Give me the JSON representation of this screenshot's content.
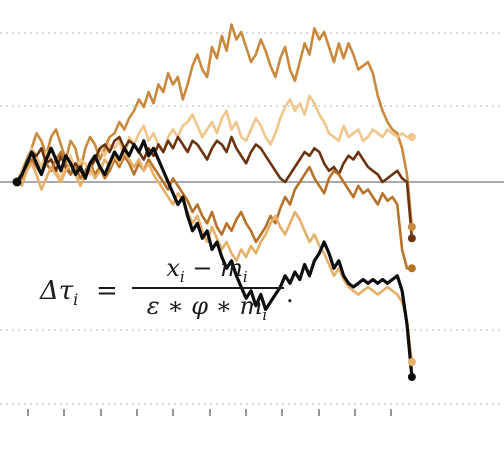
{
  "chart_data": {
    "type": "line",
    "title": "",
    "xlabel": "",
    "ylabel": "",
    "xlim": [
      0,
      80
    ],
    "ylim": [
      -5,
      4.5
    ],
    "grid": "horizontal-dotted",
    "zero_line": true,
    "formula": {
      "lhs": "Δτ",
      "lhs_sub": "i",
      "eq": "=",
      "numerator": "x",
      "numerator_sub1": "i",
      "numerator_mid": " − m",
      "numerator_sub2": "i",
      "denominator": "ε ∗ φ ∗ m",
      "denominator_sub": "i",
      "end": "."
    },
    "colors": {
      "brown_dark": "#6b3410",
      "brown_mid": "#b8732a",
      "orange": "#c98a3e",
      "tan": "#e6b06a",
      "peach": "#f0c68a",
      "black": "#0d0d0d"
    },
    "series": [
      {
        "color": "#c98a3e",
        "values": [
          0,
          0.3,
          0.6,
          0.9,
          1.3,
          1.1,
          0.7,
          1.2,
          1.4,
          1.0,
          0.6,
          1.1,
          0.9,
          0.3,
          0.9,
          1.2,
          1.0,
          0.6,
          0.9,
          1.2,
          1.3,
          1.6,
          1.4,
          1.7,
          1.9,
          2.2,
          2.0,
          2.4,
          2.1,
          2.6,
          2.4,
          2.9,
          2.6,
          2.8,
          2.2,
          2.6,
          3.1,
          3.4,
          3.0,
          2.8,
          3.6,
          3.3,
          3.9,
          3.5,
          4.2,
          3.8,
          4.0,
          3.6,
          3.2,
          3.4,
          3.8,
          3.5,
          3.1,
          2.8,
          3.3,
          3.6,
          3.0,
          2.7,
          3.2,
          3.7,
          3.4,
          4.1,
          3.8,
          4.0,
          3.6,
          3.2,
          3.7,
          3.3,
          3.7,
          3.4,
          3.0,
          3.1,
          3.2,
          2.9,
          2.3,
          1.9,
          1.6,
          1.4,
          1.3,
          0.9,
          0.2,
          -1.2
        ]
      },
      {
        "color": "#f0c68a",
        "values": [
          0,
          0.3,
          0.5,
          0.9,
          0.7,
          0.4,
          0.8,
          0.6,
          0.3,
          0.1,
          0.5,
          0.7,
          0.3,
          0.6,
          0.5,
          0.2,
          0.6,
          0.9,
          0.7,
          1.0,
          0.9,
          1.1,
          0.6,
          1.2,
          1.0,
          1.3,
          1.5,
          1.1,
          1.3,
          1.0,
          0.8,
          1.2,
          1.4,
          1.2,
          1.5,
          1.6,
          1.8,
          1.5,
          1.2,
          1.4,
          1.6,
          1.3,
          1.7,
          1.9,
          1.4,
          1.6,
          1.2,
          1.1,
          1.4,
          1.7,
          1.5,
          1.2,
          1.0,
          1.3,
          1.7,
          2.0,
          2.2,
          1.9,
          2.1,
          1.8,
          2.3,
          2.1,
          1.8,
          1.6,
          1.3,
          1.2,
          1.1,
          1.5,
          1.2,
          1.3,
          1.4,
          1.1,
          1.2,
          1.4,
          1.3,
          1.2,
          1.4,
          1.3,
          1.2,
          1.3,
          1.2,
          1.2
        ]
      },
      {
        "color": "#6b3410",
        "values": [
          0,
          0.2,
          0.4,
          0.8,
          0.7,
          0.9,
          0.5,
          0.6,
          0.3,
          0.7,
          0.4,
          0.2,
          0.5,
          0.3,
          0.1,
          0.4,
          0.6,
          0.9,
          1.0,
          0.8,
          1.1,
          1.2,
          0.9,
          1.1,
          1.0,
          0.8,
          0.6,
          0.9,
          0.7,
          1.0,
          0.8,
          1.1,
          0.9,
          1.2,
          1.0,
          0.8,
          1.1,
          1.0,
          0.8,
          0.6,
          0.9,
          1.1,
          1.0,
          0.8,
          1.2,
          0.9,
          0.7,
          0.5,
          0.8,
          1.0,
          0.9,
          0.7,
          0.5,
          0.3,
          0.1,
          0.0,
          0.2,
          0.4,
          0.6,
          0.8,
          0.7,
          0.9,
          0.8,
          0.5,
          0.3,
          0.4,
          0.2,
          0.5,
          0.7,
          0.6,
          0.8,
          0.6,
          0.4,
          0.3,
          0.2,
          0.0,
          0.1,
          0.2,
          0.3,
          0.1,
          0.0,
          -1.5
        ]
      },
      {
        "color": "#b8732a",
        "values": [
          0,
          0.1,
          0.3,
          0.6,
          0.4,
          0.2,
          0.5,
          0.3,
          0.6,
          0.8,
          0.5,
          0.2,
          0.4,
          0.1,
          0.3,
          0.5,
          0.2,
          0.4,
          0.1,
          0.3,
          0.6,
          0.4,
          0.7,
          0.5,
          0.2,
          0.5,
          0.3,
          0.6,
          0.4,
          0.2,
          0.0,
          -0.2,
          0.1,
          -0.1,
          -0.3,
          -0.5,
          -0.8,
          -0.6,
          -0.9,
          -1.1,
          -0.8,
          -1.2,
          -1.4,
          -1.1,
          -1.3,
          -1.0,
          -0.8,
          -1.1,
          -1.3,
          -1.6,
          -1.4,
          -1.2,
          -0.9,
          -1.1,
          -0.7,
          -0.4,
          -0.6,
          -0.2,
          0.0,
          0.2,
          0.4,
          0.1,
          -0.1,
          -0.3,
          0.1,
          0.3,
          0.2,
          0.0,
          -0.2,
          -0.4,
          -0.1,
          -0.3,
          -0.2,
          -0.4,
          -0.6,
          -0.3,
          -0.5,
          -0.4,
          -0.6,
          -1.8,
          -2.3,
          -2.3
        ]
      },
      {
        "color": "#e6b06a",
        "values": [
          0,
          -0.1,
          0.3,
          0.5,
          0.2,
          -0.2,
          0.1,
          0.4,
          0.2,
          0.0,
          0.3,
          0.5,
          0.2,
          -0.1,
          0.2,
          0.4,
          0.1,
          0.3,
          0.6,
          0.4,
          0.7,
          0.5,
          0.8,
          0.6,
          0.4,
          0.6,
          0.3,
          0.5,
          0.2,
          0.0,
          -0.2,
          -0.4,
          -0.6,
          -0.3,
          -0.5,
          -0.8,
          -1.1,
          -0.9,
          -1.3,
          -1.6,
          -1.2,
          -1.5,
          -1.8,
          -1.6,
          -1.9,
          -2.1,
          -1.8,
          -2.0,
          -1.7,
          -1.9,
          -1.6,
          -1.4,
          -1.1,
          -0.9,
          -1.2,
          -1.4,
          -1.1,
          -0.8,
          -1.0,
          -1.3,
          -1.6,
          -1.4,
          -1.7,
          -1.9,
          -2.2,
          -2.5,
          -2.3,
          -2.6,
          -2.8,
          -2.9,
          -3.0,
          -2.9,
          -2.8,
          -2.9,
          -3.0,
          -2.9,
          -2.8,
          -2.9,
          -3.0,
          -3.2,
          -3.7,
          -4.8
        ]
      },
      {
        "color": "#0d0d0d",
        "values": [
          0,
          0.2,
          0.5,
          0.8,
          0.5,
          0.2,
          0.6,
          0.9,
          0.6,
          0.3,
          0.7,
          0.5,
          0.2,
          0.4,
          0.1,
          0.5,
          0.7,
          0.4,
          0.2,
          0.5,
          0.8,
          0.6,
          0.9,
          0.7,
          1.0,
          0.8,
          1.1,
          0.7,
          0.9,
          0.6,
          0.3,
          0.0,
          -0.3,
          -0.6,
          -0.4,
          -0.9,
          -1.3,
          -1.1,
          -1.5,
          -1.3,
          -1.8,
          -1.6,
          -2.0,
          -2.3,
          -2.1,
          -2.5,
          -2.8,
          -3.1,
          -2.9,
          -3.3,
          -3.0,
          -3.4,
          -3.2,
          -3.0,
          -2.8,
          -2.5,
          -2.7,
          -2.4,
          -2.6,
          -2.2,
          -2.5,
          -2.1,
          -1.9,
          -1.6,
          -1.9,
          -2.3,
          -2.1,
          -2.5,
          -2.7,
          -2.8,
          -2.7,
          -2.6,
          -2.7,
          -2.6,
          -2.7,
          -2.6,
          -2.7,
          -2.6,
          -2.5,
          -2.9,
          -3.8,
          -5.2
        ]
      }
    ],
    "start_marker_color": "#0d0d0d"
  }
}
